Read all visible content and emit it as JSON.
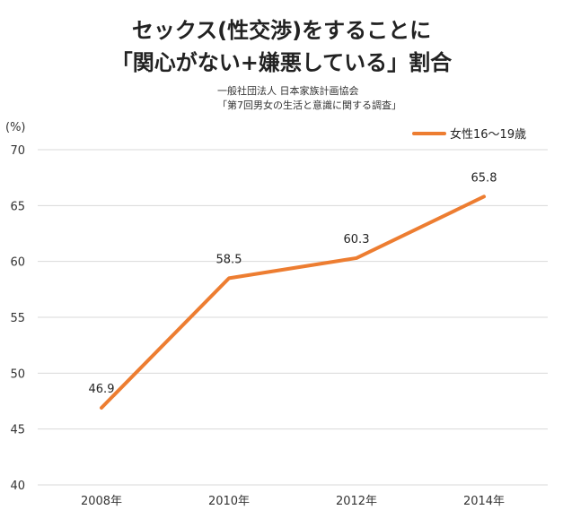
{
  "title_line1": "セックス(性交渉)をすることに",
  "title_line2": "「関心がない+嫌悪している」割合",
  "source_line1": "一般社団法人 日本家族計画協会",
  "source_line2": "「第7回男女の生活と意識に関する調査」",
  "chart_data": {
    "type": "line",
    "categories": [
      "2008年",
      "2010年",
      "2012年",
      "2014年"
    ],
    "series": [
      {
        "name": "女性16〜19歳",
        "values": [
          46.9,
          58.5,
          60.3,
          65.8
        ],
        "color": "#ed7d31"
      }
    ],
    "data_labels": [
      "46.9",
      "58.5",
      "60.3",
      "65.8"
    ],
    "yunit": "(%)",
    "ylim": [
      40,
      70
    ],
    "yticks": [
      40,
      45,
      50,
      55,
      60,
      65,
      70
    ],
    "grid": true,
    "grid_color": "#d9d9d9",
    "legend_position": "top-right"
  }
}
